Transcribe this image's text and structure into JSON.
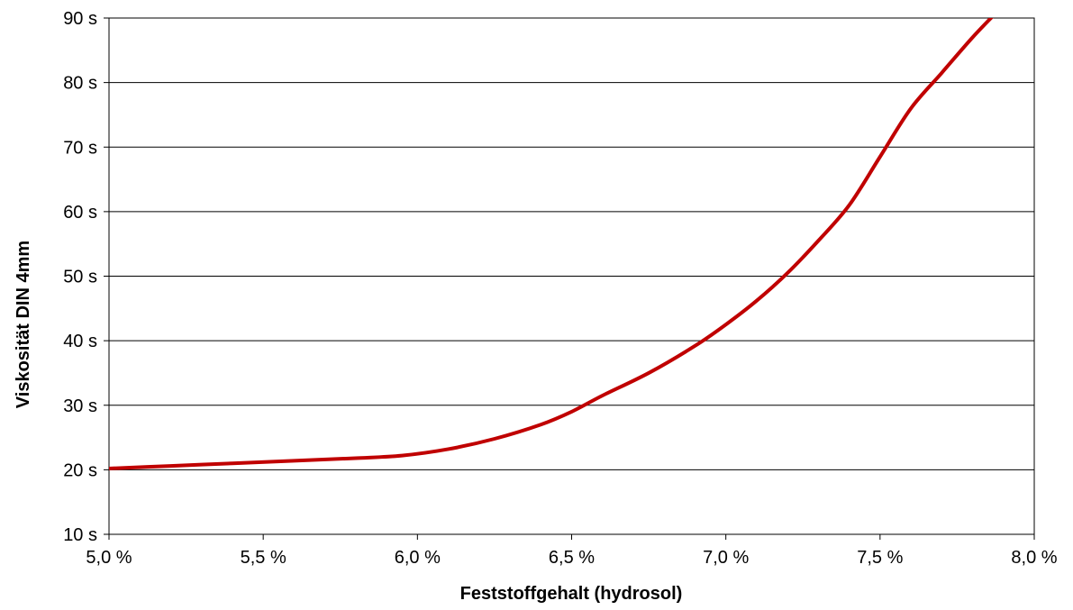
{
  "chart_data": {
    "type": "line",
    "xlabel": "Feststoffgehalt (hydrosol)",
    "ylabel": "Viskosität DIN 4mm",
    "xlim": [
      5.0,
      8.0
    ],
    "ylim": [
      10,
      90
    ],
    "x_ticks": [
      5.0,
      5.5,
      6.0,
      6.5,
      7.0,
      7.5,
      8.0
    ],
    "x_tick_labels": [
      "5,0 %",
      "5,5 %",
      "6,0 %",
      "6,5 %",
      "7,0 %",
      "7,5 %",
      "8,0 %"
    ],
    "y_ticks": [
      10,
      20,
      30,
      40,
      50,
      60,
      70,
      80,
      90
    ],
    "y_tick_labels": [
      "10 s",
      "20 s",
      "30 s",
      "40 s",
      "50 s",
      "60 s",
      "70 s",
      "80 s",
      "90 s"
    ],
    "grid": "horizontal",
    "legend": "none",
    "series": [
      {
        "color": "#c00000",
        "x": [
          5.0,
          5.2,
          5.4,
          5.6,
          5.8,
          5.95,
          6.1,
          6.25,
          6.4,
          6.5,
          6.6,
          6.75,
          6.9,
          7.0,
          7.1,
          7.2,
          7.3,
          7.4,
          7.5,
          7.6,
          7.7,
          7.8,
          7.88
        ],
        "values": [
          20.2,
          20.6,
          21.0,
          21.4,
          21.8,
          22.2,
          23.2,
          24.8,
          27.0,
          29.0,
          31.5,
          35.0,
          39.2,
          42.5,
          46.2,
          50.5,
          55.5,
          61.0,
          68.5,
          76.0,
          81.5,
          87.0,
          91.0
        ]
      }
    ]
  }
}
